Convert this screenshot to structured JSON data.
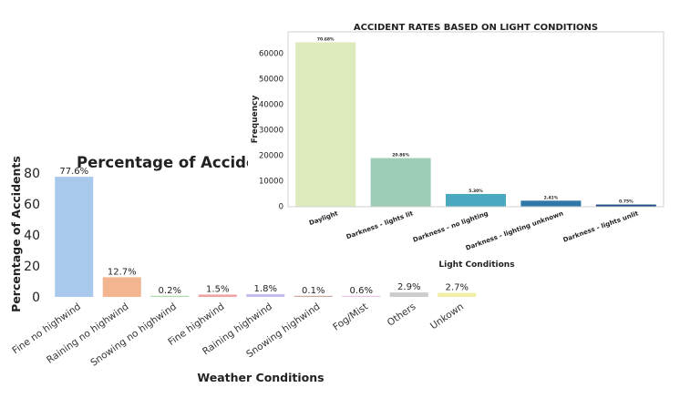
{
  "chart_data": [
    {
      "type": "bar",
      "title": "Percentage of Acciden",
      "xlabel": "Weather Conditions",
      "ylabel": "Percentage of Accidents",
      "categories": [
        "Fine no highwind",
        "Raining no highwind",
        "Snowing no highwind",
        "Fine highwind",
        "Raining highwind",
        "Snowing highwind",
        "Fog/Mist",
        "Others",
        "Unkown"
      ],
      "values": [
        77.6,
        12.7,
        0.2,
        1.5,
        1.8,
        0.1,
        0.6,
        2.9,
        2.7
      ],
      "data_labels": [
        "77.6%",
        "12.7%",
        "0.2%",
        "1.5%",
        "1.8%",
        "0.1%",
        "0.6%",
        "2.9%",
        "2.7%"
      ],
      "yticks": [
        0,
        20,
        40,
        60,
        80
      ],
      "ylim": [
        0,
        85
      ],
      "colors": [
        "#a9c9ec",
        "#f3b58f",
        "#a8dcae",
        "#f0a1a1",
        "#c5bbef",
        "#c8aa9e",
        "#f3c3e5",
        "#cccccc",
        "#f1efa6"
      ],
      "grid": false
    },
    {
      "type": "bar",
      "title": "ACCIDENT RATES BASED ON LIGHT CONDITIONS",
      "xlabel": "Light Conditions",
      "ylabel": "Frequency",
      "categories": [
        "Daylight",
        "Darkness - lights lit",
        "Darkness - no lighting",
        "Darkness - lighting unknown",
        "Darkness - lights unlit"
      ],
      "values": [
        64300,
        18900,
        4830,
        2200,
        680
      ],
      "data_labels": [
        "70.68%",
        "20.86%",
        "5.30%",
        "2.41%",
        "0.75%"
      ],
      "yticks": [
        0,
        10000,
        20000,
        30000,
        40000,
        50000,
        60000
      ],
      "ylim": [
        0,
        68000
      ],
      "colors": [
        "#ddebbc",
        "#9dcdb7",
        "#4aa9bf",
        "#2f77a7",
        "#1e4a86"
      ],
      "grid": false
    }
  ]
}
